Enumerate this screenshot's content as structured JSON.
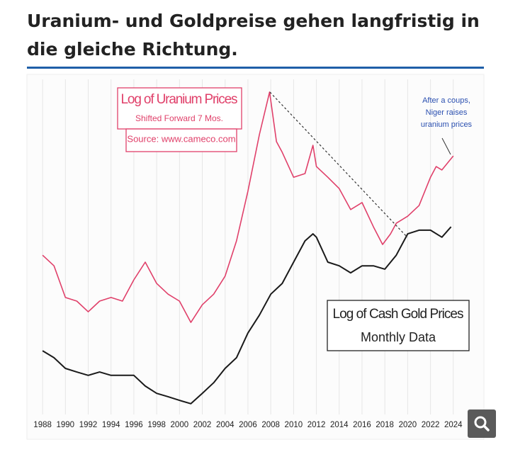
{
  "page_title": "Uranium- und Goldpreise gehen langfristig in die gleiche Richtung.",
  "chart_data": {
    "type": "line",
    "xlim": [
      1987,
      2026
    ],
    "xticks": [
      1988,
      1990,
      1992,
      1994,
      1996,
      1998,
      2000,
      2002,
      2004,
      2006,
      2008,
      2010,
      2012,
      2014,
      2016,
      2018,
      2020,
      2022,
      2024
    ],
    "ylim": [
      0,
      100
    ],
    "grid": true,
    "annotations": [
      "Shifted Forward 7 Mos.",
      "Source: www.cameco.com",
      "Monthly Data",
      "After a coups,",
      "Niger raises",
      "uranium prices"
    ],
    "series": [
      {
        "name": "Log of Uranium Prices",
        "color": "#e0406a",
        "x": [
          1988,
          1989,
          1990,
          1991,
          1992,
          1993,
          1994,
          1995,
          1996,
          1997,
          1998,
          1999,
          2000,
          2001,
          2002,
          2003,
          2004,
          2005,
          2006,
          2007,
          2007.9,
          2008.5,
          2009,
          2010,
          2011,
          2011.7,
          2012,
          2013,
          2014,
          2015,
          2016,
          2017,
          2017.8,
          2018.5,
          2019,
          2020,
          2021,
          2022,
          2022.5,
          2023,
          2024
        ],
        "values": [
          48.9,
          45.7,
          36.2,
          35.1,
          31.9,
          35.1,
          36.2,
          35.1,
          41.5,
          46.8,
          40.4,
          37.2,
          35.1,
          28.7,
          34.0,
          37.2,
          42.6,
          53.2,
          68.1,
          85.1,
          97.9,
          83.0,
          79.8,
          72.3,
          73.4,
          81.9,
          75.5,
          72.3,
          68.9,
          62.6,
          64.7,
          57.4,
          52.1,
          55.3,
          58.5,
          60.6,
          63.8,
          72.3,
          75.5,
          74.5,
          78.7
        ]
      },
      {
        "name": "Log of Cash Gold Prices",
        "color": "#1a1a1a",
        "x": [
          1988,
          1989,
          1990,
          1991,
          1992,
          1993,
          1994,
          1995,
          1996,
          1997,
          1998,
          1999,
          2000,
          2001,
          2002,
          2003,
          2004,
          2005,
          2006,
          2007,
          2008,
          2009,
          2010,
          2011,
          2011.7,
          2012,
          2013,
          2014,
          2015,
          2016,
          2017,
          2018,
          2019,
          2020,
          2021,
          2022,
          2023,
          2023.8
        ],
        "values": [
          20.2,
          18.1,
          14.9,
          13.8,
          12.8,
          13.8,
          12.8,
          12.8,
          12.8,
          9.6,
          7.4,
          6.4,
          5.3,
          4.3,
          7.4,
          10.6,
          14.9,
          18.1,
          25.5,
          30.9,
          37.2,
          40.4,
          46.8,
          53.2,
          55.3,
          54.3,
          46.8,
          45.7,
          43.6,
          45.7,
          45.7,
          44.7,
          48.9,
          55.3,
          56.4,
          56.4,
          54.3,
          57.4
        ]
      }
    ]
  }
}
